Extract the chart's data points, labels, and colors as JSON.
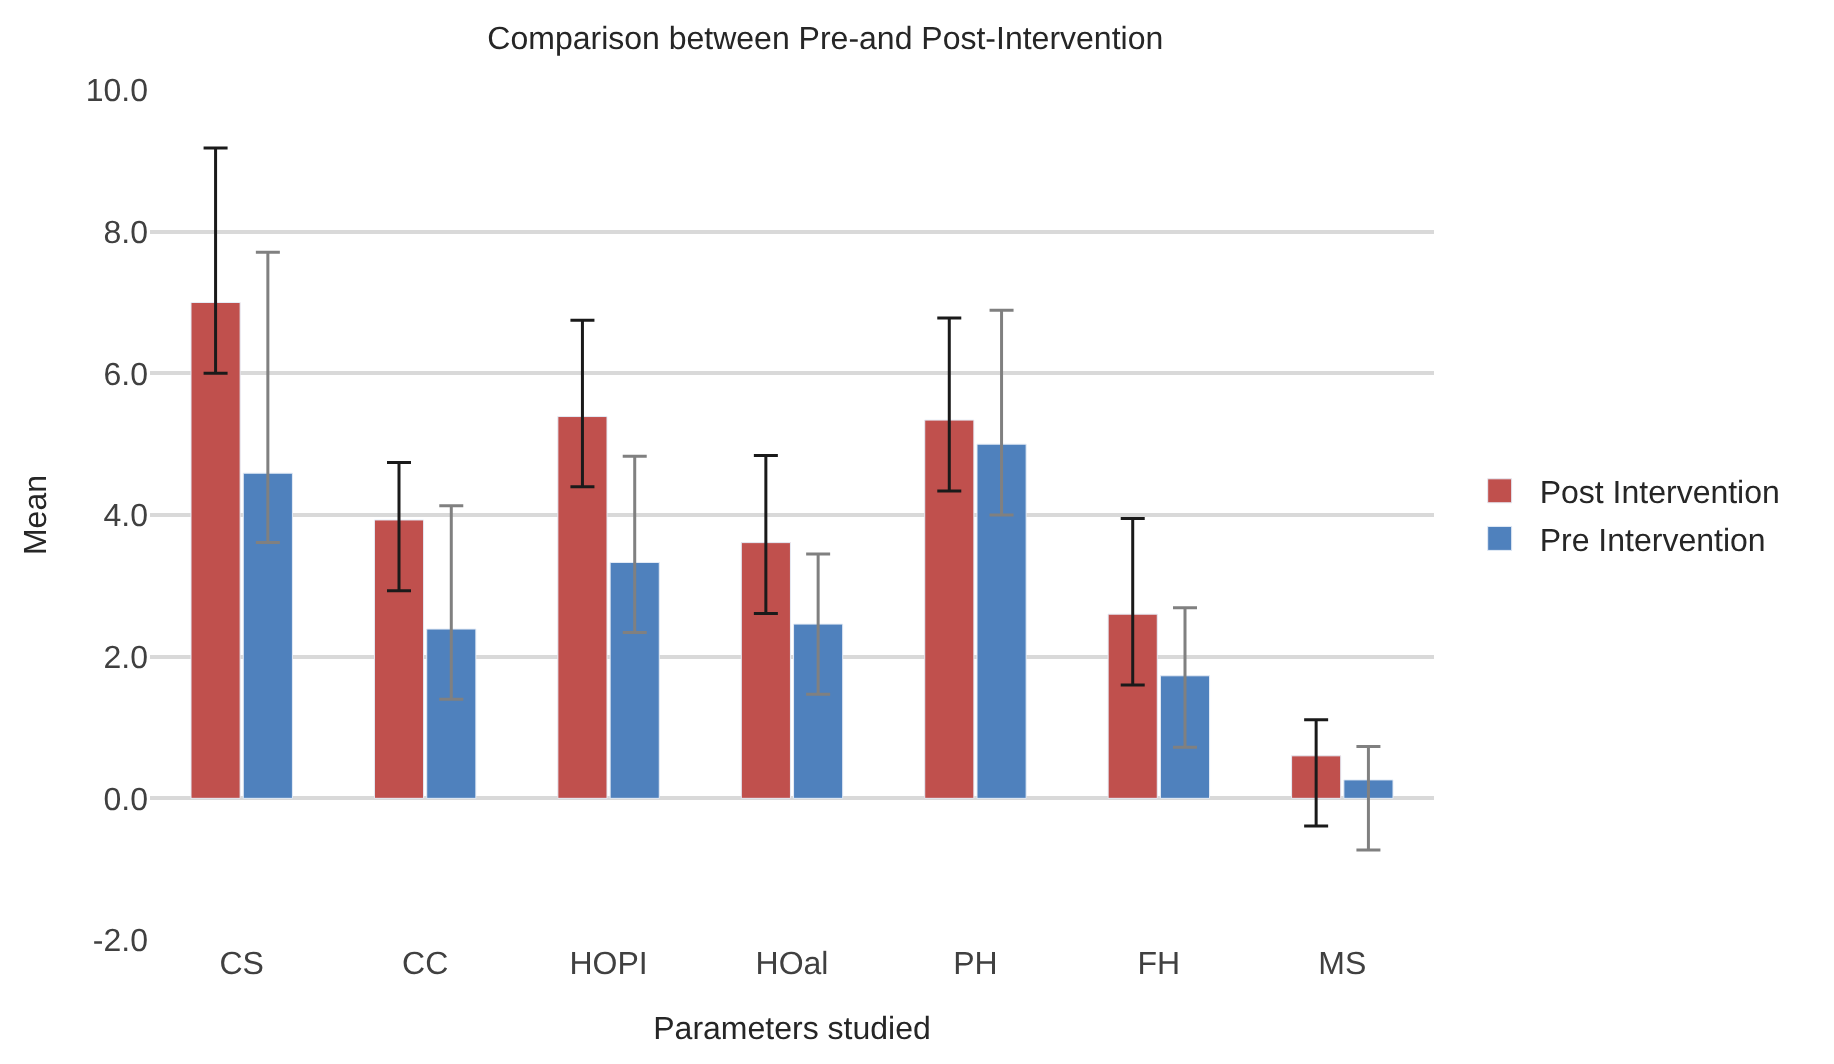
{
  "chart_data": {
    "type": "bar",
    "title": "Comparison between Pre-and Post-Intervention",
    "xlabel": "Parameters studied",
    "ylabel": "Mean",
    "categories": [
      "CS",
      "CC",
      "HOPI",
      "HOal",
      "PH",
      "FH",
      "MS"
    ],
    "series": [
      {
        "name": "Post Intervention",
        "color": "#c0504d",
        "values": [
          7.0,
          3.93,
          5.39,
          3.61,
          5.34,
          2.6,
          0.6
        ],
        "errors": [
          [
            6.0,
            9.18
          ],
          [
            2.93,
            4.74
          ],
          [
            4.4,
            6.75
          ],
          [
            2.61,
            4.84
          ],
          [
            4.34,
            6.78
          ],
          [
            1.6,
            3.95
          ],
          [
            -0.39,
            1.11
          ]
        ]
      },
      {
        "name": "Pre Intervention",
        "color": "#4f81bd",
        "values": [
          4.59,
          2.39,
          3.33,
          2.46,
          5.0,
          1.73,
          0.26
        ],
        "errors": [
          [
            3.61,
            7.71
          ],
          [
            1.4,
            4.13
          ],
          [
            2.34,
            4.83
          ],
          [
            1.47,
            3.45
          ],
          [
            4.0,
            6.89
          ],
          [
            0.72,
            2.69
          ],
          [
            -0.73,
            0.73
          ]
        ]
      }
    ],
    "ylim": [
      -2,
      10
    ],
    "yticks": [
      {
        "value": -2,
        "label": "-2.0"
      },
      {
        "value": 0,
        "label": "0.0"
      },
      {
        "value": 2,
        "label": "2.0"
      },
      {
        "value": 4,
        "label": "4.0"
      },
      {
        "value": 6,
        "label": "6.0"
      },
      {
        "value": 8,
        "label": "8.0"
      },
      {
        "value": 10,
        "label": "10.0"
      }
    ],
    "grid": "y",
    "legend": "right"
  }
}
